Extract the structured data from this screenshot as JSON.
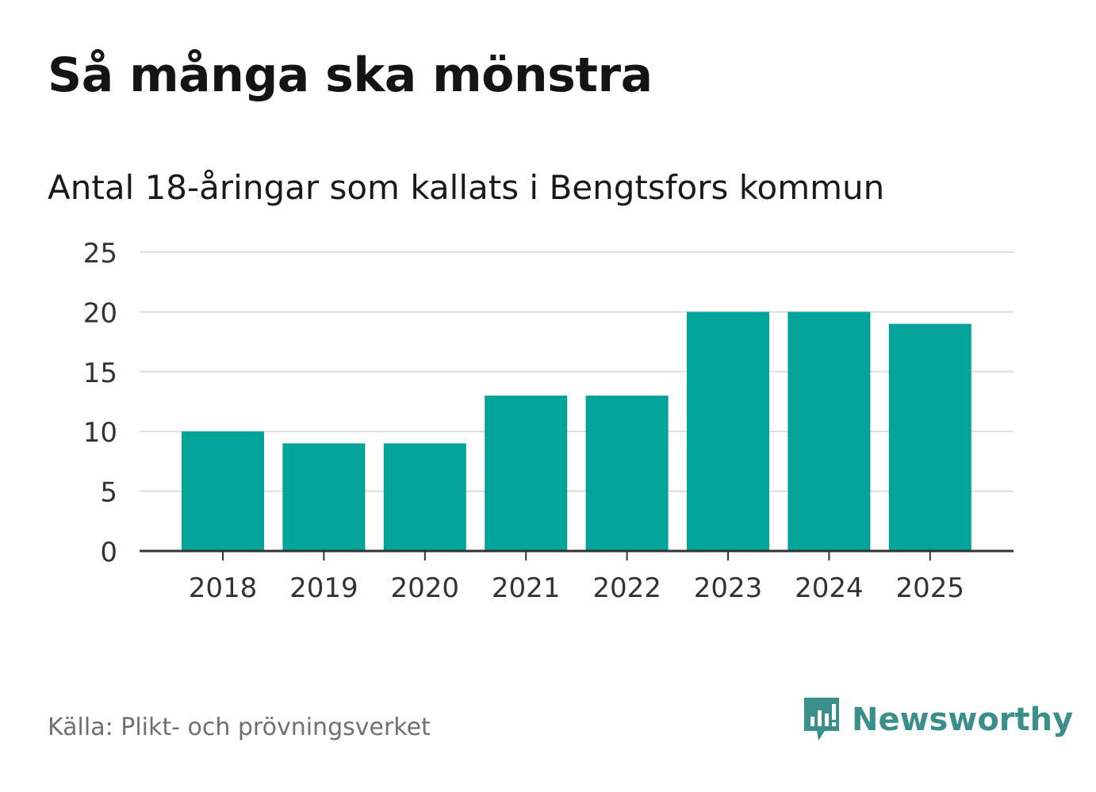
{
  "title": "Så många ska mönstra",
  "subtitle": "Antal 18-åringar som kallats i Bengtsfors kommun",
  "source": "Källa: Plikt- och prövningsverket",
  "brand": {
    "name": "Newsworthy",
    "icon": "newsworthy-logo-icon",
    "color": "#3a8f8a"
  },
  "colors": {
    "bar": "#02a399",
    "grid": "#dddddd",
    "axis": "#333333",
    "tick_text": "#333333"
  },
  "chart_data": {
    "type": "bar",
    "title": "Så många ska mönstra",
    "subtitle": "Antal 18-åringar som kallats i Bengtsfors kommun",
    "categories": [
      "2018",
      "2019",
      "2020",
      "2021",
      "2022",
      "2023",
      "2024",
      "2025"
    ],
    "values": [
      10,
      9,
      9,
      13,
      13,
      20,
      20,
      19
    ],
    "xlabel": "",
    "ylabel": "",
    "ylim": [
      0,
      25
    ],
    "yticks": [
      0,
      5,
      10,
      15,
      20,
      25
    ],
    "grid": true,
    "legend": "none"
  }
}
